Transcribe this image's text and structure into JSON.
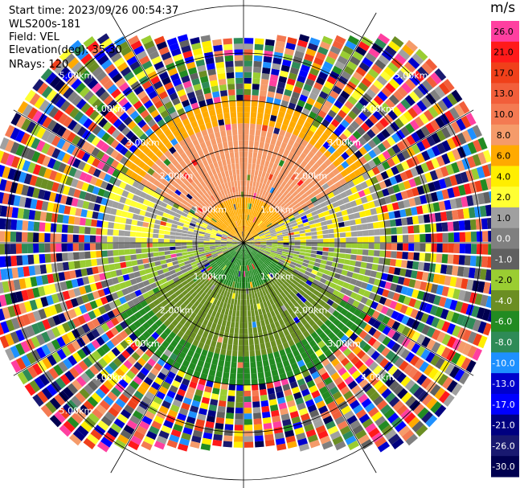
{
  "header": {
    "start_time": "Start time: 2023/09/26 00:54:37",
    "instrument": "WLS200s-181",
    "field": "Field: VEL",
    "elevation": "Elevation(deg): 35.30",
    "nrays": "NRays: 120"
  },
  "colorbar": {
    "unit": "m/s",
    "levels": [
      {
        "label": "26.0",
        "color": "#ff3fa0"
      },
      {
        "label": "21.0",
        "color": "#ff1a1a"
      },
      {
        "label": "17.0",
        "color": "#f0401a"
      },
      {
        "label": "13.0",
        "color": "#f25e3a"
      },
      {
        "label": "10.0",
        "color": "#f47a52"
      },
      {
        "label": "8.0",
        "color": "#f59b6a"
      },
      {
        "label": "6.0",
        "color": "#ffaa00"
      },
      {
        "label": "4.0",
        "color": "#ffee00"
      },
      {
        "label": "2.0",
        "color": "#ffff33"
      },
      {
        "label": "1.0",
        "color": "#a0a0a0"
      },
      {
        "label": "0.0",
        "color": "#808080"
      },
      {
        "label": "-1.0",
        "color": "#606060"
      },
      {
        "label": "-2.0",
        "color": "#9acd32"
      },
      {
        "label": "-4.0",
        "color": "#6b8e23"
      },
      {
        "label": "-6.0",
        "color": "#228b22"
      },
      {
        "label": "-8.0",
        "color": "#2e8b57"
      },
      {
        "label": "-10.0",
        "color": "#1e90ff"
      },
      {
        "label": "-13.0",
        "color": "#0000cd"
      },
      {
        "label": "-17.0",
        "color": "#0000ff"
      },
      {
        "label": "-21.0",
        "color": "#000080"
      },
      {
        "label": "-26.0",
        "color": "#191970"
      },
      {
        "label": "-30.0",
        "color": "#000050"
      }
    ]
  },
  "rings": [
    {
      "label": "1.00km"
    },
    {
      "label": "2.00km"
    },
    {
      "label": "3.00km"
    },
    {
      "label": "4.00km"
    },
    {
      "label": "5.00km"
    }
  ],
  "scan": {
    "rays": 120,
    "max_range_km": 5.5
  }
}
